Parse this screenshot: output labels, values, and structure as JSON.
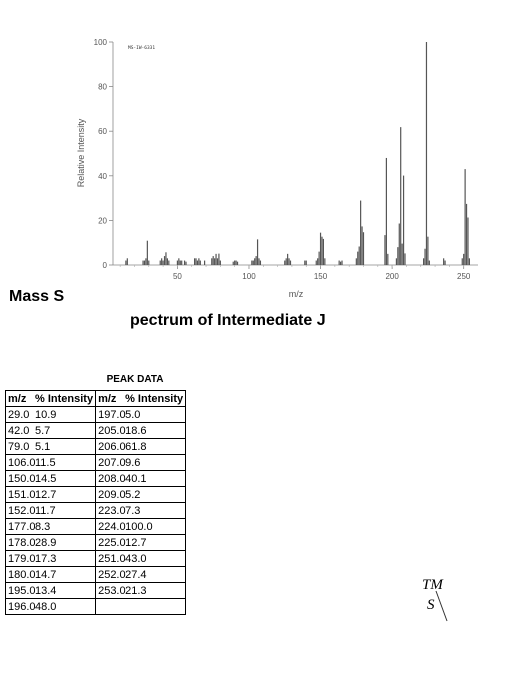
{
  "chart_data": {
    "type": "bar",
    "title": "",
    "code_label": "MS-IW-6331",
    "xlabel": "m/z",
    "ylabel": "Relative Intensity",
    "xlim": [
      5,
      260
    ],
    "ylim": [
      0,
      100
    ],
    "x_ticks": [
      "50",
      "100",
      "150",
      "200",
      "250"
    ],
    "y_ticks": [
      "0",
      "20",
      "40",
      "60",
      "80",
      "100"
    ],
    "grid": false,
    "color": "#555555",
    "peaks": [
      [
        14,
        2
      ],
      [
        15,
        3
      ],
      [
        26,
        2
      ],
      [
        27,
        2
      ],
      [
        28,
        3
      ],
      [
        29,
        10.9
      ],
      [
        30,
        2
      ],
      [
        38,
        2
      ],
      [
        39,
        3
      ],
      [
        40,
        2
      ],
      [
        41,
        4
      ],
      [
        42,
        5.7
      ],
      [
        43,
        3
      ],
      [
        44,
        2
      ],
      [
        50,
        2
      ],
      [
        51,
        3
      ],
      [
        52,
        2
      ],
      [
        53,
        2
      ],
      [
        55,
        2
      ],
      [
        56,
        1.5
      ],
      [
        62,
        3
      ],
      [
        63,
        3
      ],
      [
        64,
        2
      ],
      [
        65,
        3
      ],
      [
        66,
        2
      ],
      [
        69,
        2
      ],
      [
        74,
        3
      ],
      [
        75,
        4
      ],
      [
        76,
        3
      ],
      [
        77,
        5
      ],
      [
        78,
        3
      ],
      [
        79,
        5.1
      ],
      [
        80,
        2
      ],
      [
        89,
        1.5
      ],
      [
        90,
        2
      ],
      [
        91,
        2
      ],
      [
        92,
        1.5
      ],
      [
        102,
        2
      ],
      [
        103,
        2
      ],
      [
        104,
        3
      ],
      [
        105,
        4
      ],
      [
        106,
        11.5
      ],
      [
        107,
        3
      ],
      [
        108,
        2
      ],
      [
        125,
        2
      ],
      [
        126,
        3
      ],
      [
        127,
        5
      ],
      [
        128,
        3
      ],
      [
        129,
        2
      ],
      [
        139,
        2
      ],
      [
        140,
        2
      ],
      [
        147,
        2
      ],
      [
        148,
        3
      ],
      [
        149,
        6
      ],
      [
        150,
        14.5
      ],
      [
        151,
        12.7
      ],
      [
        152,
        11.7
      ],
      [
        153,
        3
      ],
      [
        163,
        2
      ],
      [
        164,
        1.5
      ],
      [
        165,
        2
      ],
      [
        175,
        3
      ],
      [
        176,
        6
      ],
      [
        177,
        8.3
      ],
      [
        178,
        28.9
      ],
      [
        179,
        17.3
      ],
      [
        180,
        14.7
      ],
      [
        195,
        13.4
      ],
      [
        196,
        48.0
      ],
      [
        197,
        5.0
      ],
      [
        203,
        3
      ],
      [
        204,
        8
      ],
      [
        205,
        18.6
      ],
      [
        206,
        61.8
      ],
      [
        207,
        9.6
      ],
      [
        208,
        40.1
      ],
      [
        209,
        5.2
      ],
      [
        222,
        3
      ],
      [
        223,
        7.3
      ],
      [
        224,
        100.0
      ],
      [
        225,
        12.7
      ],
      [
        226,
        2
      ],
      [
        236,
        3
      ],
      [
        237,
        2
      ],
      [
        249,
        3
      ],
      [
        250,
        5
      ],
      [
        251,
        43.0
      ],
      [
        252,
        27.4
      ],
      [
        253,
        21.3
      ],
      [
        254,
        3
      ]
    ]
  },
  "caption": {
    "part1": "Mass S",
    "part2": "pectrum of Intermediate J"
  },
  "peak_table": {
    "title": "PEAK DATA",
    "headers": {
      "mz_left": "m/z",
      "int_left": "% Intensity",
      "mz_right": "m/z",
      "int_right": "% Intensity"
    },
    "rows": [
      {
        "mz1": "29.0",
        "in1": "10.9",
        "mz2": "197.0",
        "in2": "5.0"
      },
      {
        "mz1": "42.0",
        "in1": "5.7",
        "mz2": "205.0",
        "in2": "18.6"
      },
      {
        "mz1": "79.0",
        "in1": "5.1",
        "mz2": "206.0",
        "in2": "61.8"
      },
      {
        "mz1": "106.0",
        "in1": "11.5",
        "mz2": "207.0",
        "in2": "9.6"
      },
      {
        "mz1": "150.0",
        "in1": "14.5",
        "mz2": "208.0",
        "in2": "40.1"
      },
      {
        "mz1": "151.0",
        "in1": "12.7",
        "mz2": "209.0",
        "in2": "5.2"
      },
      {
        "mz1": "152.0",
        "in1": "11.7",
        "mz2": "223.0",
        "in2": "7.3"
      },
      {
        "mz1": "177.0",
        "in1": "8.3",
        "mz2": "224.0",
        "in2": "100.0"
      },
      {
        "mz1": "178.0",
        "in1": "28.9",
        "mz2": "225.0",
        "in2": "12.7"
      },
      {
        "mz1": "179.0",
        "in1": "17.3",
        "mz2": "251.0",
        "in2": "43.0"
      },
      {
        "mz1": "180.0",
        "in1": "14.7",
        "mz2": "252.0",
        "in2": "27.4"
      },
      {
        "mz1": "195.0",
        "in1": "13.4",
        "mz2": "253.0",
        "in2": "21.3"
      },
      {
        "mz1": "196.0",
        "in1": "48.0",
        "mz2": "",
        "in2": ""
      }
    ]
  },
  "trademark": {
    "line1": "TM",
    "line2": "S"
  }
}
